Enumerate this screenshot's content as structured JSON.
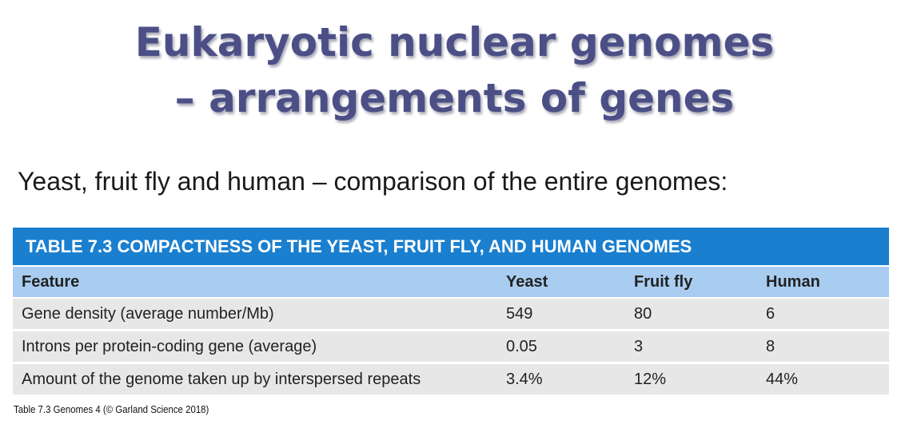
{
  "slide": {
    "title_line1": "Eukaryotic nuclear genomes",
    "title_line2": "– arrangements of genes",
    "subtitle": "Yeast, fruit fly and human – comparison of the entire genomes:"
  },
  "table": {
    "caption": "TABLE 7.3 COMPACTNESS OF THE YEAST, FRUIT FLY, AND HUMAN GENOMES",
    "headers": [
      "Feature",
      "Yeast",
      "Fruit fly",
      "Human"
    ],
    "rows": [
      [
        "Gene density (average number/Mb)",
        "549",
        "80",
        "6"
      ],
      [
        "Introns per protein-coding gene (average)",
        "0.05",
        "3",
        "8"
      ],
      [
        "Amount of the genome taken up by interspersed repeats",
        "3.4%",
        "12%",
        "44%"
      ]
    ],
    "source": "Table 7.3  Genomes 4 (© Garland Science 2018)"
  },
  "colors": {
    "title": "#4b4f86",
    "caption_bar": "#1a7fcf",
    "header_row": "#a9cdf0",
    "body_row": "#e7e7e7"
  }
}
